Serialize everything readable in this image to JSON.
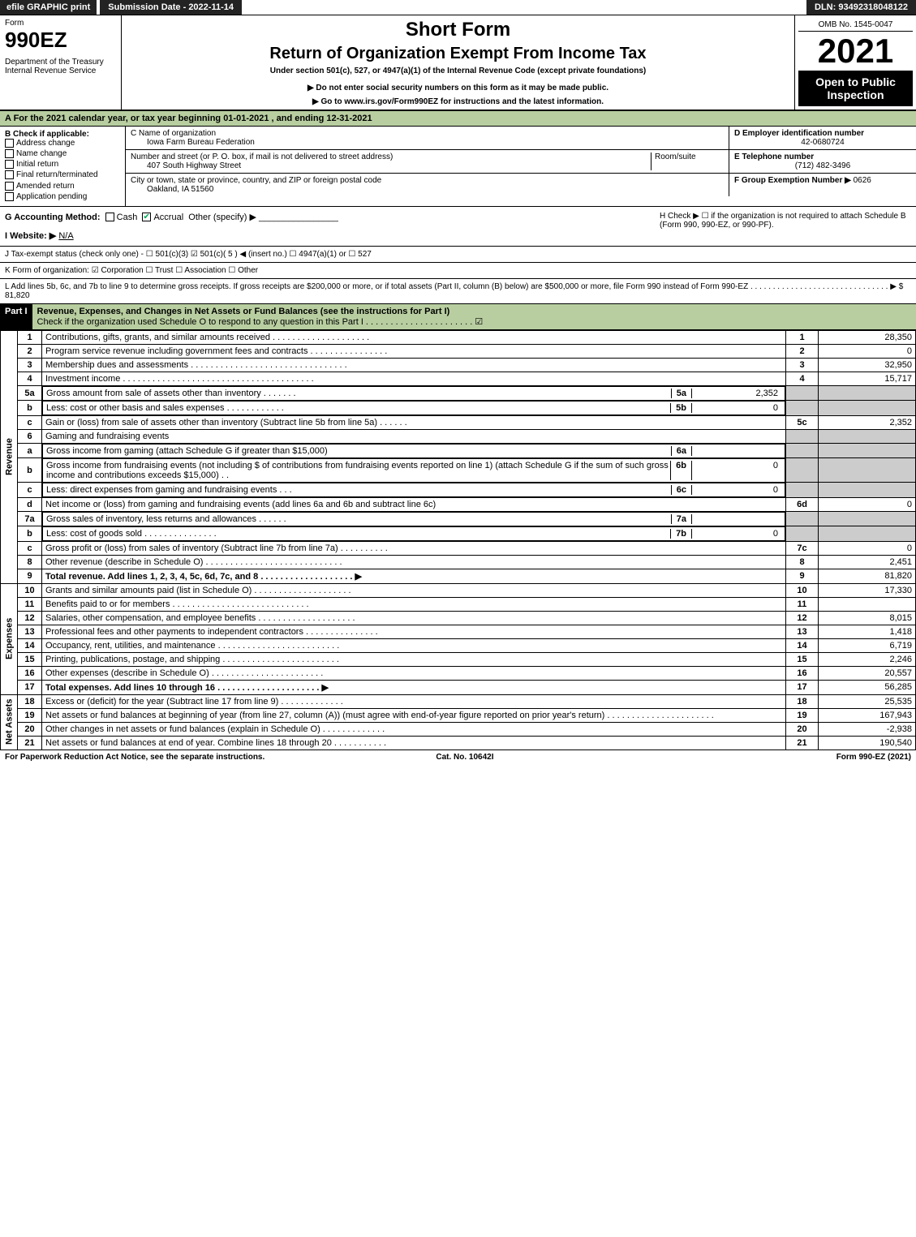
{
  "top": {
    "efile": "efile GRAPHIC print",
    "submission": "Submission Date - 2022-11-14",
    "dln": "DLN: 93492318048122"
  },
  "header": {
    "form": "Form",
    "number": "990EZ",
    "dept": "Department of the Treasury\nInternal Revenue Service",
    "short": "Short Form",
    "title": "Return of Organization Exempt From Income Tax",
    "under": "Under section 501(c), 527, or 4947(a)(1) of the Internal Revenue Code (except private foundations)",
    "note1": "▶ Do not enter social security numbers on this form as it may be made public.",
    "note2": "▶ Go to www.irs.gov/Form990EZ for instructions and the latest information.",
    "omb": "OMB No. 1545-0047",
    "year": "2021",
    "open": "Open to Public Inspection"
  },
  "A": "A  For the 2021 calendar year, or tax year beginning 01-01-2021 , and ending 12-31-2021",
  "B": {
    "label": "B  Check if applicable:",
    "opts": [
      "Address change",
      "Name change",
      "Initial return",
      "Final return/terminated",
      "Amended return",
      "Application pending"
    ]
  },
  "C": {
    "name_label": "C Name of organization",
    "name": "Iowa Farm Bureau Federation",
    "street_label": "Number and street (or P. O. box, if mail is not delivered to street address)",
    "street": "407 South Highway Street",
    "room_label": "Room/suite",
    "city_label": "City or town, state or province, country, and ZIP or foreign postal code",
    "city": "Oakland, IA  51560"
  },
  "D": {
    "label": "D Employer identification number",
    "value": "42-0680724"
  },
  "E": {
    "label": "E Telephone number",
    "value": "(712) 482-3496"
  },
  "F": {
    "label": "F Group Exemption Number  ▶",
    "value": "0626"
  },
  "G": {
    "label": "G Accounting Method:",
    "cash": "Cash",
    "accrual": "Accrual",
    "other": "Other (specify) ▶"
  },
  "H": "H   Check ▶ ☐ if the organization is not required to attach Schedule B (Form 990, 990-EZ, or 990-PF).",
  "I": {
    "label": "I Website: ▶",
    "value": "N/A"
  },
  "J": "J Tax-exempt status (check only one) - ☐ 501(c)(3) ☑ 501(c)( 5 ) ◀ (insert no.) ☐ 4947(a)(1) or ☐ 527",
  "K": "K Form of organization: ☑ Corporation  ☐ Trust  ☐ Association  ☐ Other",
  "L": {
    "text": "L Add lines 5b, 6c, and 7b to line 9 to determine gross receipts. If gross receipts are $200,000 or more, or if total assets (Part II, column (B) below) are $500,000 or more, file Form 990 instead of Form 990-EZ . . . . . . . . . . . . . . . . . . . . . . . . . . . . . . . ▶",
    "amount": "$ 81,820"
  },
  "part1": {
    "label": "Part I",
    "title": "Revenue, Expenses, and Changes in Net Assets or Fund Balances (see the instructions for Part I)",
    "check": "Check if the organization used Schedule O to respond to any question in this Part I . . . . . . . . . . . . . . . . . . . . . . ☑"
  },
  "revenue": [
    {
      "n": "1",
      "desc": "Contributions, gifts, grants, and similar amounts received . . . . . . . . . . . . . . . . . . . .",
      "ln": "1",
      "amt": "28,350"
    },
    {
      "n": "2",
      "desc": "Program service revenue including government fees and contracts . . . . . . . . . . . . . . . .",
      "ln": "2",
      "amt": "0"
    },
    {
      "n": "3",
      "desc": "Membership dues and assessments . . . . . . . . . . . . . . . . . . . . . . . . . . . . . . . .",
      "ln": "3",
      "amt": "32,950"
    },
    {
      "n": "4",
      "desc": "Investment income . . . . . . . . . . . . . . . . . . . . . . . . . . . . . . . . . . . . . . .",
      "ln": "4",
      "amt": "15,717"
    }
  ],
  "line5a": {
    "n": "5a",
    "desc": "Gross amount from sale of assets other than inventory . . . . . . .",
    "mid": "5a",
    "midval": "2,352"
  },
  "line5b": {
    "n": "b",
    "desc": "Less: cost or other basis and sales expenses . . . . . . . . . . . .",
    "mid": "5b",
    "midval": "0"
  },
  "line5c": {
    "n": "c",
    "desc": "Gain or (loss) from sale of assets other than inventory (Subtract line 5b from line 5a) . . . . . .",
    "ln": "5c",
    "amt": "2,352"
  },
  "line6": {
    "n": "6",
    "desc": "Gaming and fundraising events"
  },
  "line6a": {
    "n": "a",
    "desc": "Gross income from gaming (attach Schedule G if greater than $15,000)",
    "mid": "6a",
    "midval": ""
  },
  "line6b": {
    "n": "b",
    "desc": "Gross income from fundraising events (not including $                   of contributions from fundraising events reported on line 1) (attach Schedule G if the sum of such gross income and contributions exceeds $15,000)    . .",
    "mid": "6b",
    "midval": "0"
  },
  "line6c": {
    "n": "c",
    "desc": "Less: direct expenses from gaming and fundraising events    . . .",
    "mid": "6c",
    "midval": "0"
  },
  "line6d": {
    "n": "d",
    "desc": "Net income or (loss) from gaming and fundraising events (add lines 6a and 6b and subtract line 6c)",
    "ln": "6d",
    "amt": "0"
  },
  "line7a": {
    "n": "7a",
    "desc": "Gross sales of inventory, less returns and allowances . . . . . .",
    "mid": "7a",
    "midval": ""
  },
  "line7b": {
    "n": "b",
    "desc": "Less: cost of goods sold       . . . . . . . . . . . . . . .",
    "mid": "7b",
    "midval": "0"
  },
  "line7c": {
    "n": "c",
    "desc": "Gross profit or (loss) from sales of inventory (Subtract line 7b from line 7a) . . . . . . . . . .",
    "ln": "7c",
    "amt": "0"
  },
  "line8": {
    "n": "8",
    "desc": "Other revenue (describe in Schedule O) . . . . . . . . . . . . . . . . . . . . . . . . . . . .",
    "ln": "8",
    "amt": "2,451"
  },
  "line9": {
    "n": "9",
    "desc": "Total revenue. Add lines 1, 2, 3, 4, 5c, 6d, 7c, and 8 . . . . . . . . . . . . . . . . . . .    ▶",
    "ln": "9",
    "amt": "81,820"
  },
  "expenses": [
    {
      "n": "10",
      "desc": "Grants and similar amounts paid (list in Schedule O) . . . . . . . . . . . . . . . . . . . .",
      "ln": "10",
      "amt": "17,330"
    },
    {
      "n": "11",
      "desc": "Benefits paid to or for members    . . . . . . . . . . . . . . . . . . . . . . . . . . . .",
      "ln": "11",
      "amt": ""
    },
    {
      "n": "12",
      "desc": "Salaries, other compensation, and employee benefits . . . . . . . . . . . . . . . . . . . .",
      "ln": "12",
      "amt": "8,015"
    },
    {
      "n": "13",
      "desc": "Professional fees and other payments to independent contractors . . . . . . . . . . . . . . .",
      "ln": "13",
      "amt": "1,418"
    },
    {
      "n": "14",
      "desc": "Occupancy, rent, utilities, and maintenance . . . . . . . . . . . . . . . . . . . . . . . . .",
      "ln": "14",
      "amt": "6,719"
    },
    {
      "n": "15",
      "desc": "Printing, publications, postage, and shipping . . . . . . . . . . . . . . . . . . . . . . . .",
      "ln": "15",
      "amt": "2,246"
    },
    {
      "n": "16",
      "desc": "Other expenses (describe in Schedule O)     . . . . . . . . . . . . . . . . . . . . . . .",
      "ln": "16",
      "amt": "20,557"
    },
    {
      "n": "17",
      "desc": "Total expenses. Add lines 10 through 16    . . . . . . . . . . . . . . . . . . . . .  ▶",
      "ln": "17",
      "amt": "56,285"
    }
  ],
  "netassets": [
    {
      "n": "18",
      "desc": "Excess or (deficit) for the year (Subtract line 17 from line 9)        . . . . . . . . . . . . .",
      "ln": "18",
      "amt": "25,535"
    },
    {
      "n": "19",
      "desc": "Net assets or fund balances at beginning of year (from line 27, column (A)) (must agree with end-of-year figure reported on prior year's return) . . . . . . . . . . . . . . . . . . . . . .",
      "ln": "19",
      "amt": "167,943"
    },
    {
      "n": "20",
      "desc": "Other changes in net assets or fund balances (explain in Schedule O) . . . . . . . . . . . . .",
      "ln": "20",
      "amt": "-2,938"
    },
    {
      "n": "21",
      "desc": "Net assets or fund balances at end of year. Combine lines 18 through 20 . . . . . . . . . . .",
      "ln": "21",
      "amt": "190,540"
    }
  ],
  "labels": {
    "revenue": "Revenue",
    "expenses": "Expenses",
    "netassets": "Net Assets"
  },
  "footer": {
    "left": "For Paperwork Reduction Act Notice, see the separate instructions.",
    "mid": "Cat. No. 10642I",
    "right": "Form 990-EZ (2021)"
  }
}
